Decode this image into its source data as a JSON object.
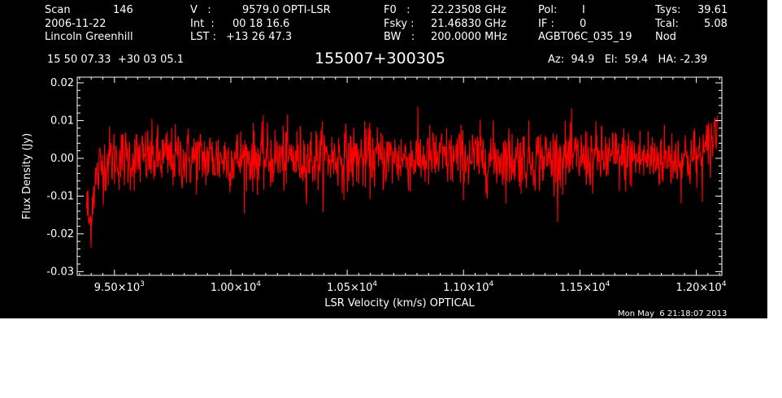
{
  "header": {
    "scan_label": "Scan",
    "scan_value": "146",
    "date": "2006-11-22",
    "observer": "Lincoln Greenhill",
    "v_label": "V   :",
    "v_value": "9579.0 OPTI-LSR",
    "int_label": "Int  :",
    "int_value": "00 18 16.6",
    "lst_label": "LST :",
    "lst_value": "+13 26 47.3",
    "f0_label": "F0   :",
    "f0_value": "22.23508 GHz",
    "fsky_label": "Fsky :",
    "fsky_value": "21.46830 GHz",
    "bw_label": "BW   :",
    "bw_value": "200.0000 MHz",
    "pol_label": "Pol:",
    "pol_value": "I",
    "if_label": "IF :",
    "if_value": "0",
    "project": "AGBT06C_035_19",
    "tsys_label": "Tsys:",
    "tsys_value": "39.61",
    "tcal_label": "Tcal:",
    "tcal_value": "5.08",
    "proc": "Nod",
    "coords": "15 50 07.33  +30 03 05.1",
    "source": "155007+300305",
    "az_el_ha": "Az:  94.9   El:  59.4   HA: -2.39"
  },
  "timestamp": "Mon May  6 21:18:07 2013",
  "chart_data": {
    "type": "line",
    "xlabel": "LSR Velocity (km/s) OPTICAL",
    "ylabel": "Flux Density (Jy)",
    "xlim": [
      9340,
      12110
    ],
    "ylim": [
      -0.031,
      0.0215
    ],
    "x_ticks": [
      9500,
      10000,
      10500,
      11000,
      11500,
      12000
    ],
    "x_tick_labels": [
      {
        "mantissa": "9.50×10",
        "exp": "3"
      },
      {
        "mantissa": "1.00×10",
        "exp": "4"
      },
      {
        "mantissa": "1.05×10",
        "exp": "4"
      },
      {
        "mantissa": "1.10×10",
        "exp": "4"
      },
      {
        "mantissa": "1.15×10",
        "exp": "4"
      },
      {
        "mantissa": "1.20×10",
        "exp": "4"
      }
    ],
    "y_ticks": [
      0.02,
      0.01,
      0.0,
      -0.01,
      -0.02,
      -0.03
    ],
    "y_tick_labels": [
      "0.02",
      "0.01",
      "0.00",
      "-0.01",
      "-0.02",
      "-0.03"
    ],
    "series": [
      {
        "color": "#ff0000",
        "x_start": 9380,
        "x_end": 12090,
        "n_points": 1400,
        "noise_sigma": 0.0042,
        "envelope": [
          {
            "x": 9380,
            "y": -0.012
          },
          {
            "x": 9395,
            "y": -0.018
          },
          {
            "x": 9410,
            "y": -0.008
          },
          {
            "x": 9440,
            "y": -0.002
          },
          {
            "x": 9480,
            "y": 0.0
          },
          {
            "x": 12000,
            "y": 0.0
          },
          {
            "x": 12040,
            "y": 0.001
          },
          {
            "x": 12070,
            "y": 0.005
          },
          {
            "x": 12090,
            "y": 0.008
          }
        ]
      }
    ]
  }
}
